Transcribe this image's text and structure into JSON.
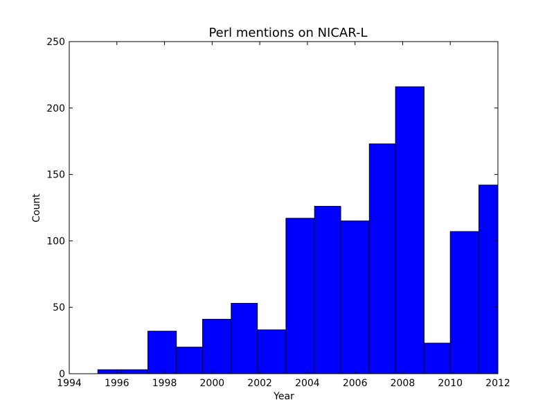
{
  "chart_data": {
    "type": "bar",
    "title": "Perl mentions on NICAR-L",
    "xlabel": "Year",
    "ylabel": "Count",
    "xlim": [
      1994,
      2012
    ],
    "ylim": [
      0,
      250
    ],
    "xticks": [
      1994,
      1996,
      1998,
      2000,
      2002,
      2004,
      2006,
      2008,
      2010,
      2012
    ],
    "yticks": [
      0,
      50,
      100,
      150,
      200,
      250
    ],
    "bar_color": "#0000ff",
    "bar_edge_color": "#000000",
    "grid": false,
    "bins": [
      {
        "x0": 1995.2,
        "x1": 1996.2,
        "value": 3
      },
      {
        "x0": 1996.2,
        "x1": 1997.3,
        "value": 3
      },
      {
        "x0": 1997.3,
        "x1": 1998.5,
        "value": 32
      },
      {
        "x0": 1998.5,
        "x1": 1999.6,
        "value": 20
      },
      {
        "x0": 1999.6,
        "x1": 2000.8,
        "value": 41
      },
      {
        "x0": 2000.8,
        "x1": 2001.9,
        "value": 53
      },
      {
        "x0": 2001.9,
        "x1": 2003.1,
        "value": 33
      },
      {
        "x0": 2003.1,
        "x1": 2004.3,
        "value": 117
      },
      {
        "x0": 2004.3,
        "x1": 2005.4,
        "value": 126
      },
      {
        "x0": 2005.4,
        "x1": 2006.6,
        "value": 115
      },
      {
        "x0": 2006.6,
        "x1": 2007.7,
        "value": 173
      },
      {
        "x0": 2007.7,
        "x1": 2008.9,
        "value": 216
      },
      {
        "x0": 2008.9,
        "x1": 2010.0,
        "value": 23
      },
      {
        "x0": 2010.0,
        "x1": 2011.2,
        "value": 107
      },
      {
        "x0": 2011.2,
        "x1": 2012.0,
        "value": 142
      }
    ]
  }
}
